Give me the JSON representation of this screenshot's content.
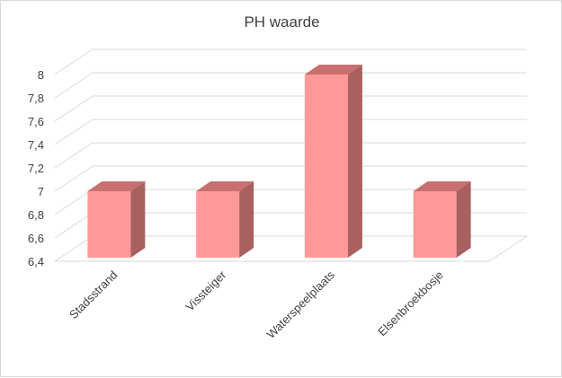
{
  "chart_data": {
    "type": "bar",
    "title": "PH waarde",
    "xlabel": "",
    "ylabel": "",
    "categories": [
      "Stadsstrand",
      "Vissteiger",
      "Waterspeelplaats",
      "Elsenbroekbosje"
    ],
    "values": [
      7,
      7,
      8,
      7
    ],
    "ylim": [
      6.4,
      8
    ],
    "yticks": [
      "6,4",
      "6,6",
      "6,8",
      "7",
      "7,2",
      "7,4",
      "7,6",
      "7,8",
      "8"
    ],
    "grid": true,
    "legend": "none",
    "colors": {
      "bar_front": "#ff9999",
      "bar_top": "#c87070",
      "bar_side": "#a86060",
      "grid": "#d9d9d9"
    }
  }
}
